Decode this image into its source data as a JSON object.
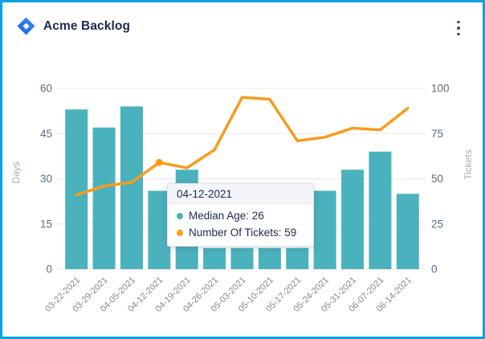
{
  "frame": {
    "border_color": "#0AA2E0",
    "background": "#FFFFFF"
  },
  "header": {
    "title": "Acme Backlog",
    "logo_icon": "jira-diamond-icon",
    "menu_icon": "kebab-menu-icon"
  },
  "chart_data": {
    "type": "bar+line",
    "categories": [
      "03-22-2021",
      "03-29-2021",
      "04-05-2021",
      "04-12-2021",
      "04-19-2021",
      "04-26-2021",
      "05-03-2021",
      "05-10-2021",
      "05-17-2021",
      "05-24-2021",
      "05-31-2021",
      "06-07-2021",
      "06-14-2021"
    ],
    "series": [
      {
        "name": "Median Age",
        "type": "bar",
        "axis": "left",
        "color": "#4AB2BC",
        "values": [
          53,
          47,
          54,
          26,
          33,
          7,
          7,
          7,
          7,
          26,
          33,
          39,
          25
        ]
      },
      {
        "name": "Number Of Tickets",
        "type": "line",
        "axis": "right",
        "color": "#F89C1C",
        "values": [
          41,
          46,
          48,
          59,
          56,
          66,
          95,
          94,
          71,
          73,
          78,
          77,
          89
        ]
      }
    ],
    "left_axis": {
      "label": "Days",
      "ticks": [
        0,
        15,
        30,
        45,
        60
      ],
      "min": 0,
      "max": 60
    },
    "right_axis": {
      "label": "Tickets",
      "ticks": [
        0,
        25,
        50,
        75,
        100
      ],
      "min": 0,
      "max": 100
    },
    "grid": true,
    "legend": "none",
    "hover_index": 3,
    "tick_color": "#5E6C84",
    "xlabel_color": "#888888",
    "axis_title_color": "#A5ADBA",
    "grid_color": "#E5E7EB"
  },
  "tooltip": {
    "title": "04-12-2021",
    "items": [
      {
        "text": "Median Age: 26",
        "color": "#4AB2BC"
      },
      {
        "text": "Number Of Tickets: 59",
        "color": "#FFA013"
      }
    ]
  }
}
